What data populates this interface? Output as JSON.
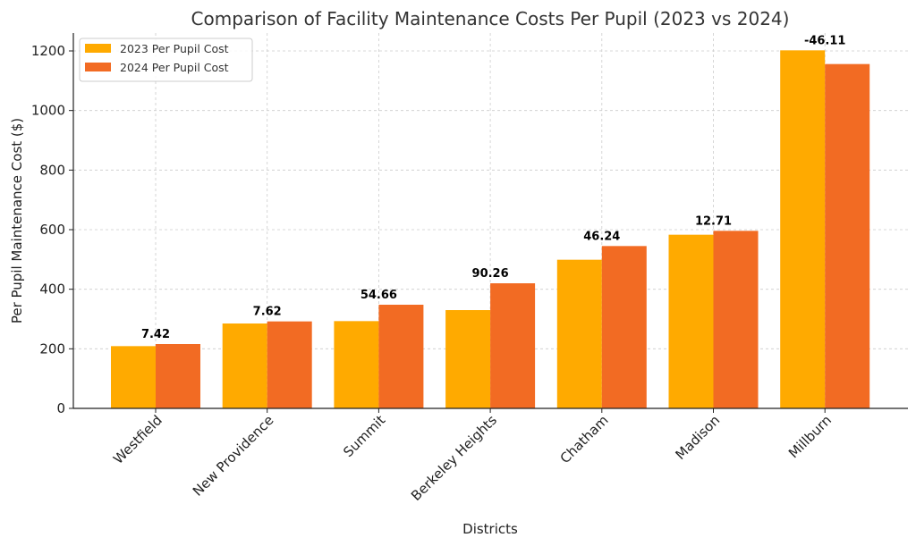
{
  "chart_data": {
    "type": "bar",
    "title": "Comparison of Facility Maintenance Costs Per Pupil (2023 vs 2024)",
    "xlabel": "Districts",
    "ylabel": "Per Pupil Maintenance Cost ($)",
    "ylim": [
      0,
      1260
    ],
    "yticks": [
      0,
      200,
      400,
      600,
      800,
      1000,
      1200
    ],
    "grid": true,
    "legend_position": "top-left",
    "categories": [
      "Westfield",
      "New Providence",
      "Summit",
      "Berkeley Heights",
      "Chatham",
      "Madison",
      "Millburn"
    ],
    "series": [
      {
        "name": "2023 Per Pupil Cost",
        "color": "#FFAA00",
        "values": [
          209,
          285,
          293,
          330,
          499,
          583,
          1202
        ]
      },
      {
        "name": "2024 Per Pupil Cost",
        "color": "#F26B23",
        "values": [
          216,
          292,
          348,
          420,
          545,
          596,
          1156
        ]
      }
    ],
    "annotations": [
      "7.42",
      "7.62",
      "54.66",
      "90.26",
      "46.24",
      "12.71",
      "-46.11"
    ]
  }
}
